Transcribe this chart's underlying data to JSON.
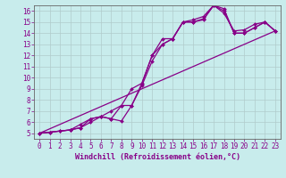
{
  "xlabel": "Windchill (Refroidissement éolien,°C)",
  "ylabel": "",
  "bg_color": "#c8ecec",
  "line_color": "#880088",
  "grid_color": "#b0cccc",
  "xlim": [
    -0.5,
    23.5
  ],
  "ylim": [
    4.5,
    16.5
  ],
  "xticks": [
    0,
    1,
    2,
    3,
    4,
    5,
    6,
    7,
    8,
    9,
    10,
    11,
    12,
    13,
    14,
    15,
    16,
    17,
    18,
    19,
    20,
    21,
    22,
    23
  ],
  "yticks": [
    5,
    6,
    7,
    8,
    9,
    10,
    11,
    12,
    13,
    14,
    15,
    16
  ],
  "line1_x": [
    0,
    1,
    2,
    3,
    4,
    5,
    6,
    7,
    8,
    9,
    10,
    11,
    12,
    13,
    14,
    15,
    16,
    17,
    18,
    19,
    20,
    21,
    22,
    23
  ],
  "line1_y": [
    5.0,
    5.1,
    5.2,
    5.3,
    5.8,
    6.3,
    6.5,
    6.3,
    6.1,
    7.5,
    9.3,
    11.5,
    13.0,
    13.5,
    15.0,
    15.0,
    15.2,
    16.5,
    15.8,
    14.2,
    14.3,
    14.8,
    15.0,
    14.2
  ],
  "line2_x": [
    0,
    1,
    2,
    3,
    4,
    5,
    6,
    7,
    8,
    9,
    10,
    11,
    12,
    13,
    14,
    15,
    16,
    17,
    18,
    19,
    20,
    21,
    22,
    23
  ],
  "line2_y": [
    5.0,
    5.1,
    5.2,
    5.3,
    5.5,
    6.0,
    6.5,
    7.0,
    7.5,
    9.0,
    9.5,
    12.0,
    13.5,
    13.5,
    15.0,
    15.2,
    15.5,
    16.5,
    16.2,
    14.0,
    14.0,
    14.5,
    15.0,
    14.2
  ],
  "line3_x": [
    0,
    3,
    4,
    5,
    6,
    7,
    8,
    9,
    10,
    11,
    12,
    13,
    14,
    15,
    16,
    17,
    18,
    19,
    20,
    21,
    22,
    23
  ],
  "line3_y": [
    5.0,
    5.3,
    5.5,
    6.3,
    6.5,
    6.3,
    7.5,
    7.5,
    9.5,
    12.0,
    13.0,
    13.5,
    15.0,
    15.0,
    15.3,
    16.5,
    16.0,
    14.0,
    14.0,
    14.5,
    15.0,
    14.2
  ],
  "line4_x": [
    0,
    23
  ],
  "line4_y": [
    5.0,
    14.2
  ],
  "tick_fontsize": 5.5,
  "label_fontsize": 6.0,
  "marker": "D",
  "marker_size": 2.0,
  "linewidth": 0.9
}
